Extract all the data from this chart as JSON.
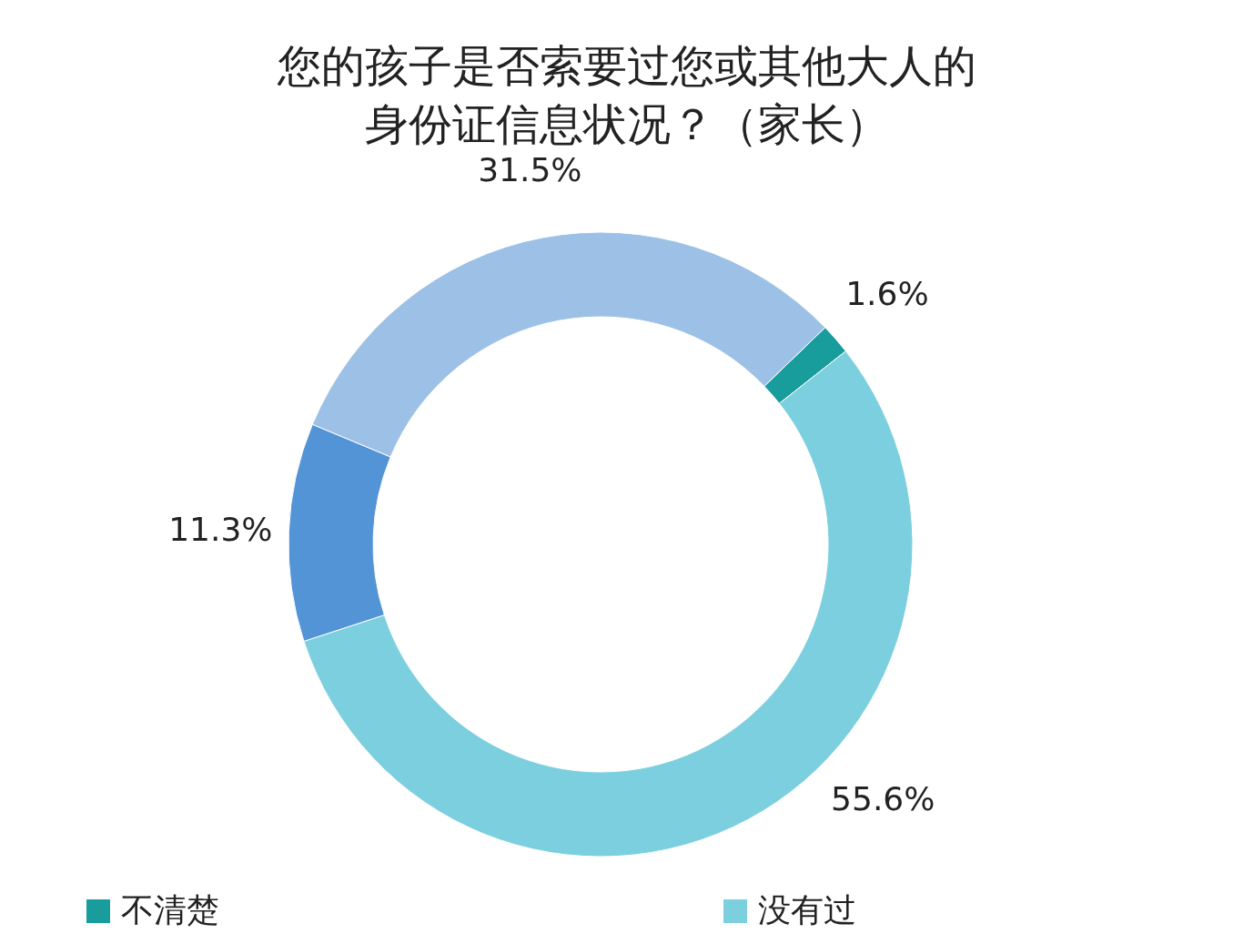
{
  "chart_data": {
    "type": "donut",
    "title": "您的孩子是否索要过您或其他大人的身份证信息状况？（家长）",
    "categories": [
      "不清楚",
      "没有过",
      null,
      null
    ],
    "values": [
      1.6,
      55.6,
      11.3,
      31.5
    ],
    "colors": [
      "#199c9c",
      "#7ccfdf",
      "#5394d6",
      "#9dc1e6"
    ],
    "value_labels": [
      "1.6%",
      "55.6%",
      "11.3%",
      "31.5%"
    ],
    "legend": "bottom"
  }
}
